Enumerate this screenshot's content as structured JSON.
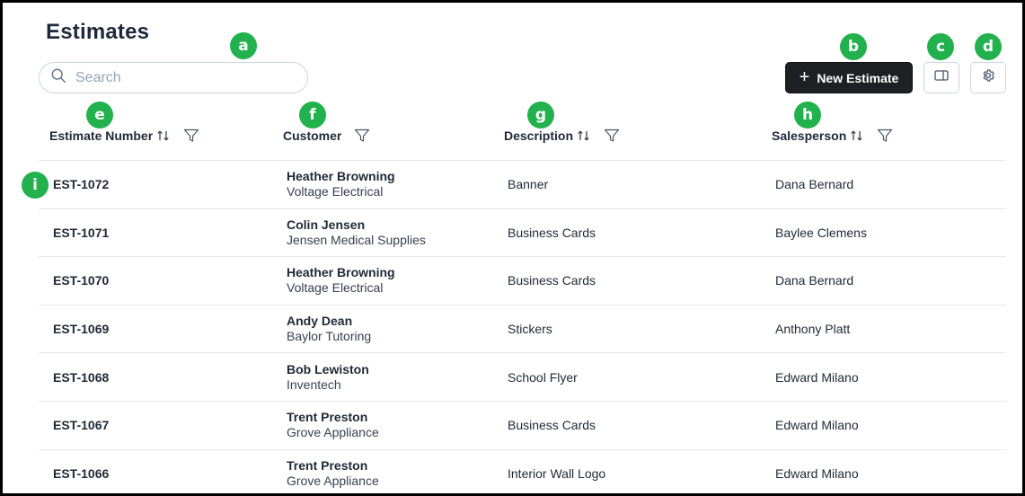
{
  "page": {
    "title": "Estimates"
  },
  "search": {
    "placeholder": "Search"
  },
  "toolbar": {
    "new_label": "New Estimate",
    "plus_glyph": "+",
    "panel_icon": "panel-toggle-icon",
    "settings_icon": "gear-icon"
  },
  "columns": {
    "estimate_number": "Estimate Number",
    "customer": "Customer",
    "description": "Description",
    "salesperson": "Salesperson"
  },
  "badges": {
    "a": "a",
    "b": "b",
    "c": "c",
    "d": "d",
    "e": "e",
    "f": "f",
    "g": "g",
    "h": "h",
    "i": "i"
  },
  "rows": [
    {
      "number": "EST-1072",
      "customer_name": "Heather Browning",
      "customer_company": "Voltage Electrical",
      "description": "Banner",
      "salesperson": "Dana Bernard"
    },
    {
      "number": "EST-1071",
      "customer_name": "Colin Jensen",
      "customer_company": "Jensen Medical Supplies",
      "description": "Business Cards",
      "salesperson": "Baylee Clemens"
    },
    {
      "number": "EST-1070",
      "customer_name": "Heather Browning",
      "customer_company": "Voltage Electrical",
      "description": "Business Cards",
      "salesperson": "Dana Bernard"
    },
    {
      "number": "EST-1069",
      "customer_name": "Andy Dean",
      "customer_company": "Baylor Tutoring",
      "description": "Stickers",
      "salesperson": "Anthony Platt"
    },
    {
      "number": "EST-1068",
      "customer_name": "Bob Lewiston",
      "customer_company": "Inventech",
      "description": "School Flyer",
      "salesperson": "Edward Milano"
    },
    {
      "number": "EST-1067",
      "customer_name": "Trent Preston",
      "customer_company": "Grove Appliance",
      "description": "Business Cards",
      "salesperson": "Edward Milano"
    },
    {
      "number": "EST-1066",
      "customer_name": "Trent Preston",
      "customer_company": "Grove Appliance",
      "description": "Interior Wall Logo",
      "salesperson": "Edward Milano"
    }
  ],
  "colors": {
    "accent_badge": "#22b14c",
    "primary_button": "#1f2023",
    "border": "#cbd5e1"
  }
}
